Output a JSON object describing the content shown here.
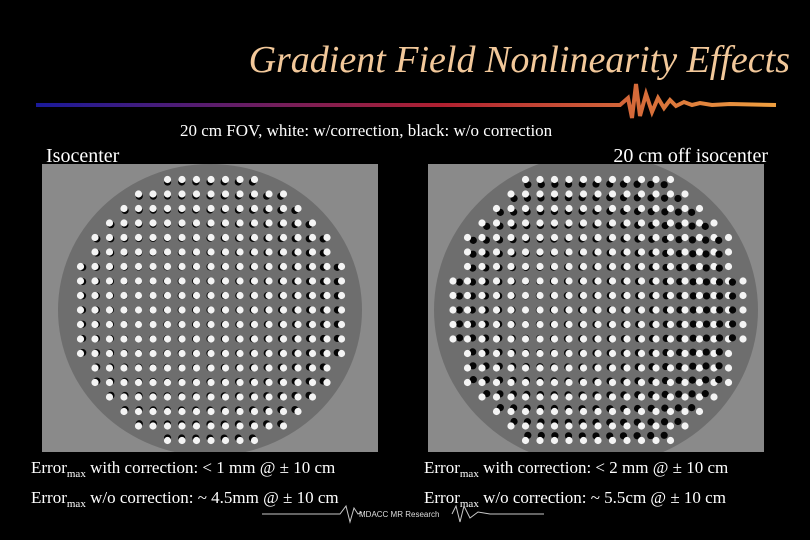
{
  "slide": {
    "title": "Gradient Field Nonlinearity Effects",
    "subtitle": "20 cm FOV, white: w/correction, black: w/o correction",
    "left_label": "Isocenter",
    "right_label": "20 cm off isocenter",
    "left_errors": [
      {
        "word": "Error",
        "sub": "max",
        "rest": " with correction: < 1 mm @ ± 10 cm"
      },
      {
        "word": "Error",
        "sub": "max",
        "rest": " w/o correction: ~ 4.5mm @ ± 10 cm"
      }
    ],
    "right_errors": [
      {
        "word": "Error",
        "sub": "max",
        "rest": " with correction: < 2 mm @ ± 10 cm"
      },
      {
        "word": "Error",
        "sub": "max",
        "rest": " w/o correction: ~ 5.5cm @ ± 10 cm"
      }
    ],
    "footer": "MDACC MR Research",
    "colors": {
      "background": "#000000",
      "title": "#f2c89a",
      "phantom_bg": "#8a8a8a",
      "bar_start": "#1a1a9a",
      "bar_mid": "#b02030",
      "bar_end": "#f0a040"
    }
  }
}
